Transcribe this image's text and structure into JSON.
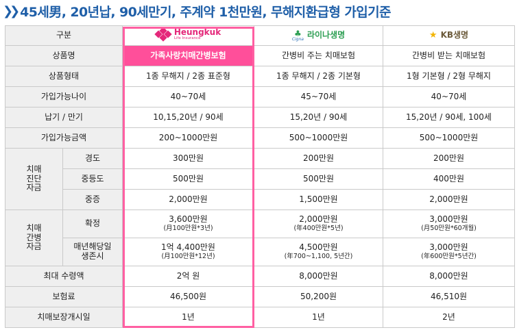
{
  "title": "45세男, 20년납, 90세만기, 주계약 1천만원, 무해지환급형 가입기준",
  "header": {
    "category_label": "구분",
    "insurers": [
      {
        "name": "Heungkuk",
        "sub": "Life Insurance"
      },
      {
        "mark": "Cigna",
        "name": "라이나생명"
      },
      {
        "mark": "KB",
        "name": "KB생명"
      }
    ]
  },
  "rows": [
    {
      "label": "상품명",
      "values": [
        "가족사랑치매간병보험",
        "간병비 주는 치매보험",
        "간병비 받는 치매보험"
      ]
    },
    {
      "label": "상품형태",
      "values": [
        "1종 무해지 / 2종 표준형",
        "1종 무해지 / 2종 기본형",
        "1형 기본형 / 2형 무해지"
      ]
    },
    {
      "label": "가입가능나이",
      "values": [
        "40~70세",
        "45~70세",
        "40~70세"
      ]
    },
    {
      "label": "납기 / 만기",
      "values": [
        "10,15,20년 / 90세",
        "15,20년 / 90세",
        "15,20년 / 90세, 100세"
      ]
    },
    {
      "label": "가입가능금액",
      "values": [
        "200~1000만원",
        "500~1000만원",
        "500~1000만원"
      ]
    }
  ],
  "diagnosis": {
    "group_label": "치매\n진단\n자금",
    "rows": [
      {
        "label": "경도",
        "values": [
          "300만원",
          "200만원",
          "200만원"
        ]
      },
      {
        "label": "중등도",
        "values": [
          "500만원",
          "500만원",
          "400만원"
        ]
      },
      {
        "label": "중증",
        "values": [
          "2,000만원",
          "1,500만원",
          "2,000만원"
        ]
      }
    ]
  },
  "care": {
    "group_label": "치매\n간병\n자금",
    "rows": [
      {
        "label": "확정",
        "values": [
          {
            "main": "3,600만원",
            "note": "(月100만원*3년)"
          },
          {
            "main": "2,000만원",
            "note": "(年400만원*5년)"
          },
          {
            "main": "3,000만원",
            "note": "(月50만원*60개월)"
          }
        ]
      },
      {
        "label": "매년해당일\n생존시",
        "values": [
          {
            "main": "1억 4,400만원",
            "note": "(月100만원*12년)"
          },
          {
            "main": "4,500만원",
            "note": "(年700~1,100, 5년간)"
          },
          {
            "main": "3,000만원",
            "note": "(年600만원*5년간)"
          }
        ]
      }
    ]
  },
  "tail_rows": [
    {
      "label": "최대 수령액",
      "values": [
        "2억 원",
        "8,000만원",
        "8,000만원"
      ]
    },
    {
      "label": "보험료",
      "values": [
        "46,500원",
        "50,200원",
        "46,510원"
      ]
    },
    {
      "label": "치매보장개시일",
      "values": [
        "1년",
        "1년",
        "2년"
      ]
    }
  ],
  "colors": {
    "title": "#1f5fa8",
    "highlight": "#ff5fa2",
    "highlight_fill": "#ff4f9a",
    "label_bg": "#efefef"
  }
}
